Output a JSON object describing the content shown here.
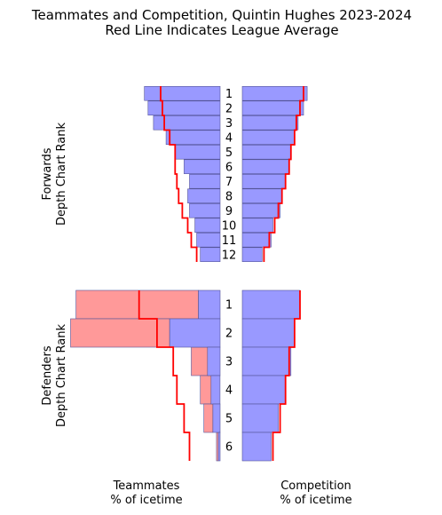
{
  "chart_data": {
    "type": "bar",
    "title": "Teammates and Competition, Quintin Hughes 2023-2024",
    "subtitle": "Red Line Indicates League Average",
    "xlabel_left": "Teammates\n% of icetime",
    "xlabel_right": "Competition\n% of icetime",
    "groups": [
      {
        "ylabel": "Forwards\nDepth Chart Rank",
        "ranks": [
          "1",
          "2",
          "3",
          "4",
          "5",
          "6",
          "7",
          "8",
          "9",
          "10",
          "11",
          "12"
        ],
        "series": [
          {
            "side": "teammates",
            "color": "#9999ff",
            "values": [
              42,
              40,
              37,
              30,
              25,
              20,
              17,
              18,
              17,
              14,
              13,
              11
            ]
          },
          {
            "side": "competition",
            "color": "#9999ff",
            "values": [
              36,
              34,
              31,
              29,
              27,
              26,
              24,
              22,
              21,
              17,
              16,
              11
            ]
          }
        ],
        "league_average": {
          "teammates": [
            33,
            32,
            31,
            28,
            25,
            25,
            24,
            23,
            21,
            18,
            16,
            13
          ],
          "competition": [
            34,
            32,
            30,
            29,
            27,
            26,
            24,
            22,
            20,
            18,
            15,
            12
          ]
        }
      },
      {
        "ylabel": "Defenders\nDepth Chart Rank",
        "ranks": [
          "1",
          "2",
          "3",
          "4",
          "5",
          "6"
        ],
        "series": [
          {
            "side": "teammates",
            "color": "#ff9999",
            "label": "extra",
            "values": [
              68,
              55,
              9,
              6,
              5,
              1
            ]
          },
          {
            "side": "teammates",
            "color": "#9999ff",
            "values": [
              12,
              28,
              7,
              5,
              4,
              1
            ]
          },
          {
            "side": "competition",
            "color": "#9999ff",
            "values": [
              32,
              29,
              27,
              24,
              20,
              16
            ]
          }
        ],
        "league_average": {
          "teammates": [
            45,
            35,
            26,
            24,
            20,
            17
          ],
          "competition": [
            32,
            29,
            26,
            24,
            21,
            17
          ]
        }
      }
    ],
    "colors": {
      "bar": "#9999ff",
      "bar_edge": "#555599",
      "highlight": "#ff9999",
      "average_line": "#ff0000"
    }
  }
}
